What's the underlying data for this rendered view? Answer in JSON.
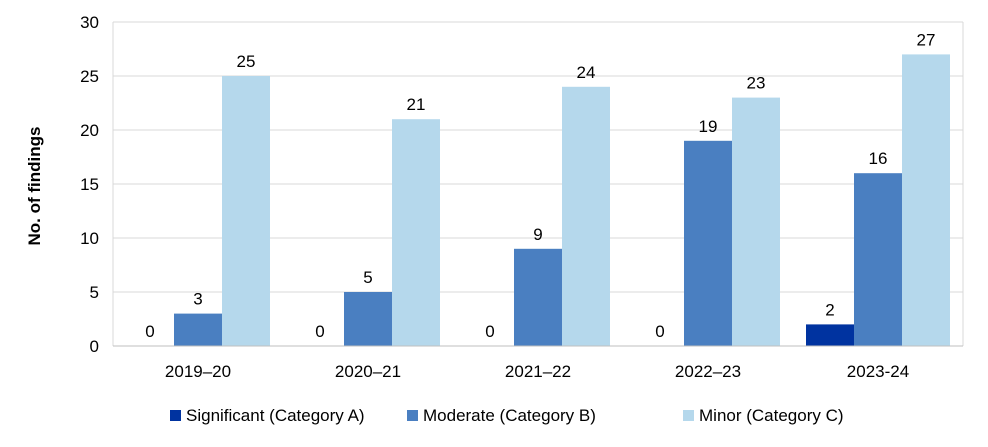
{
  "chart_data": {
    "type": "bar",
    "title": "",
    "xlabel": "",
    "ylabel": "No. of findings",
    "ylim": [
      0,
      30
    ],
    "yticks": [
      0,
      5,
      10,
      15,
      20,
      25,
      30
    ],
    "grid": true,
    "legend_position": "bottom",
    "categories": [
      "2019–20",
      "2020–21",
      "2021–22",
      "2022–23",
      "2023-24"
    ],
    "series": [
      {
        "name": "Significant (Category A)",
        "color": "#0033A0",
        "values": [
          0,
          0,
          0,
          0,
          2
        ]
      },
      {
        "name": "Moderate (Category B)",
        "color": "#4A7FC1",
        "values": [
          3,
          5,
          9,
          19,
          16
        ]
      },
      {
        "name": "Minor (Category C)",
        "color": "#B5D8EC",
        "values": [
          25,
          21,
          24,
          23,
          27
        ]
      }
    ]
  }
}
